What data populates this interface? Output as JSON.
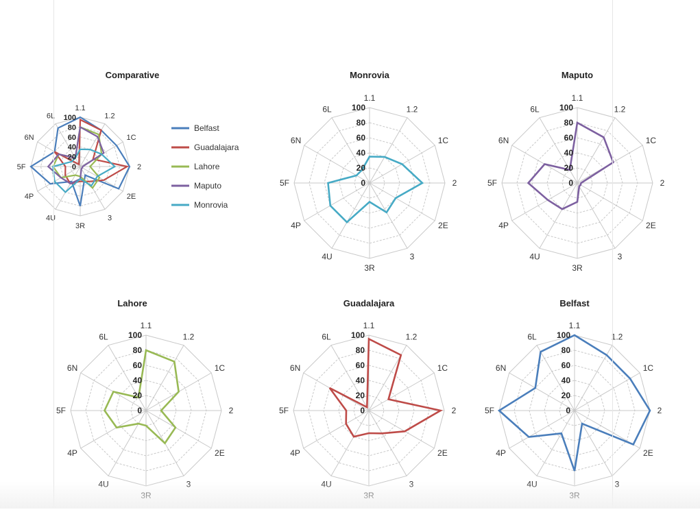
{
  "chart_data": [
    {
      "type": "radar",
      "title": "Comparative",
      "categories": [
        "1.1",
        "1.2",
        "1C",
        "2",
        "2E",
        "3",
        "3R",
        "4U",
        "4P",
        "5F",
        "6N",
        "6L"
      ],
      "rlim": [
        0,
        100
      ],
      "ticks": [
        "0",
        "20",
        "40",
        "60",
        "80",
        "100"
      ],
      "legend": "right",
      "series": [
        {
          "name": "Belfast",
          "values": [
            100,
            85,
            85,
            100,
            90,
            20,
            80,
            35,
            70,
            100,
            60,
            90
          ]
        },
        {
          "name": "Guadalajara",
          "values": [
            95,
            85,
            30,
            95,
            55,
            35,
            30,
            40,
            35,
            30,
            60,
            5
          ]
        },
        {
          "name": "Lahore",
          "values": [
            80,
            75,
            50,
            20,
            45,
            50,
            20,
            20,
            45,
            55,
            50,
            20
          ]
        },
        {
          "name": "Maputo",
          "values": [
            80,
            70,
            55,
            5,
            5,
            5,
            25,
            40,
            45,
            65,
            50,
            20
          ]
        },
        {
          "name": "Monrovia",
          "values": [
            35,
            40,
            50,
            70,
            40,
            45,
            25,
            60,
            60,
            55,
            20,
            20
          ]
        }
      ]
    },
    {
      "type": "radar",
      "title": "Monrovia",
      "categories": [
        "1.1",
        "1.2",
        "1C",
        "2",
        "2E",
        "3",
        "3R",
        "4U",
        "4P",
        "5F",
        "6N",
        "6L"
      ],
      "rlim": [
        0,
        100
      ],
      "ticks": [
        "0",
        "20",
        "40",
        "60",
        "80",
        "100"
      ],
      "series": [
        {
          "name": "Monrovia",
          "values": [
            35,
            40,
            50,
            70,
            40,
            45,
            25,
            60,
            60,
            55,
            20,
            20
          ]
        }
      ]
    },
    {
      "type": "radar",
      "title": "Maputo",
      "categories": [
        "1.1",
        "1.2",
        "1C",
        "2",
        "2E",
        "3",
        "3R",
        "4U",
        "4P",
        "5F",
        "6N",
        "6L"
      ],
      "rlim": [
        0,
        100
      ],
      "ticks": [
        "0",
        "20",
        "40",
        "60",
        "80",
        "100"
      ],
      "series": [
        {
          "name": "Maputo",
          "values": [
            80,
            70,
            55,
            5,
            5,
            5,
            25,
            40,
            45,
            65,
            50,
            20
          ]
        }
      ]
    },
    {
      "type": "radar",
      "title": "Lahore",
      "categories": [
        "1.1",
        "1.2",
        "1C",
        "2",
        "2E",
        "3",
        "3R",
        "4U",
        "4P",
        "5F",
        "6N",
        "6L"
      ],
      "rlim": [
        0,
        100
      ],
      "ticks": [
        "0",
        "20",
        "40",
        "60",
        "80",
        "100"
      ],
      "series": [
        {
          "name": "Lahore",
          "values": [
            80,
            75,
            50,
            20,
            45,
            50,
            20,
            20,
            45,
            55,
            50,
            20
          ]
        }
      ]
    },
    {
      "type": "radar",
      "title": "Guadalajara",
      "categories": [
        "1.1",
        "1.2",
        "1C",
        "2",
        "2E",
        "3",
        "3R",
        "4U",
        "4P",
        "5F",
        "6N",
        "6L"
      ],
      "rlim": [
        0,
        100
      ],
      "ticks": [
        "0",
        "20",
        "40",
        "60",
        "80",
        "100"
      ],
      "series": [
        {
          "name": "Guadalajara",
          "values": [
            95,
            85,
            30,
            95,
            55,
            35,
            30,
            40,
            35,
            30,
            60,
            5
          ]
        }
      ]
    },
    {
      "type": "radar",
      "title": "Belfast",
      "categories": [
        "1.1",
        "1.2",
        "1C",
        "2",
        "2E",
        "3",
        "3R",
        "4U",
        "4P",
        "5F",
        "6N",
        "6L"
      ],
      "rlim": [
        0,
        100
      ],
      "ticks": [
        "0",
        "20",
        "40",
        "60",
        "80",
        "100"
      ],
      "series": [
        {
          "name": "Belfast",
          "values": [
            100,
            85,
            85,
            100,
            90,
            20,
            80,
            35,
            70,
            100,
            60,
            90
          ]
        }
      ]
    }
  ],
  "colors": {
    "Belfast": "#4a7ebb",
    "Guadalajara": "#be4b48",
    "Lahore": "#98b954",
    "Maputo": "#7d60a0",
    "Monrovia": "#46aac5"
  }
}
